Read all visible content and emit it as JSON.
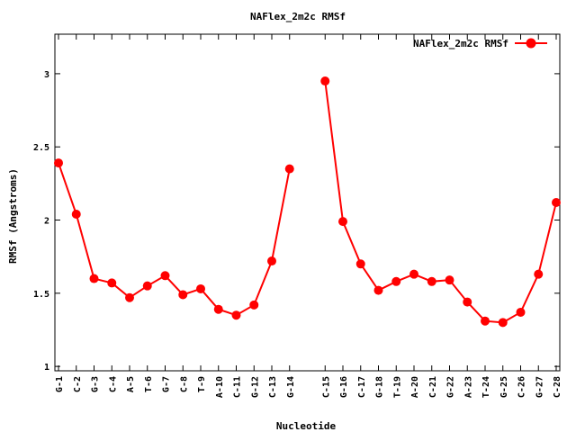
{
  "chart_data": {
    "type": "line",
    "title": "NAFlex_2m2c RMSf",
    "xlabel": "Nucleotide",
    "ylabel": "RMSf (Angstroms)",
    "ylim": [
      0.97,
      3.27
    ],
    "yticks": [
      1,
      1.5,
      2,
      2.5,
      3
    ],
    "ytick_labels": [
      "1",
      "1.5",
      "2",
      "2.5",
      "3"
    ],
    "legend_position": "top-right",
    "series": [
      {
        "name": "NAFlex_2m2c RMSf",
        "color": "#ff0000",
        "segments": [
          {
            "x": [
              1,
              2,
              3,
              4,
              5,
              6,
              7,
              8,
              9,
              10,
              11,
              12,
              13,
              14
            ],
            "labels": [
              "G-1",
              "C-2",
              "G-3",
              "C-4",
              "A-5",
              "T-6",
              "G-7",
              "C-8",
              "T-9",
              "A-10",
              "C-11",
              "G-12",
              "C-13",
              "G-14"
            ],
            "values": [
              2.39,
              2.04,
              1.6,
              1.57,
              1.47,
              1.55,
              1.62,
              1.49,
              1.53,
              1.39,
              1.35,
              1.42,
              1.72,
              2.35
            ]
          },
          {
            "x": [
              16,
              17,
              18,
              19,
              20,
              21,
              22,
              23,
              24,
              25,
              26,
              27,
              28,
              29
            ],
            "labels": [
              "C-15",
              "G-16",
              "C-17",
              "G-18",
              "T-19",
              "A-20",
              "C-21",
              "G-22",
              "A-23",
              "T-24",
              "G-25",
              "C-26",
              "G-27",
              "C-28"
            ],
            "values": [
              2.95,
              1.99,
              1.7,
              1.52,
              1.58,
              1.63,
              1.58,
              1.59,
              1.44,
              1.31,
              1.3,
              1.37,
              1.63,
              2.12
            ]
          }
        ]
      }
    ],
    "xlim": [
      1,
      29
    ]
  }
}
